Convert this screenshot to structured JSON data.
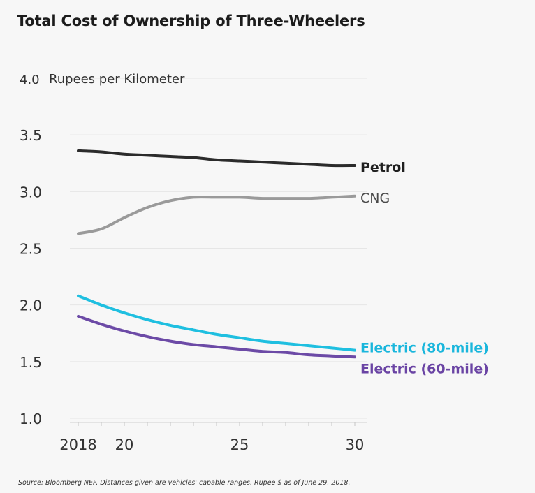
{
  "chart_data": {
    "type": "line",
    "title": "Total Cost of Ownership of Three-Wheelers",
    "ylabel_inline": "Rupees per Kilometer",
    "ylim": [
      1.0,
      4.0
    ],
    "yticks": [
      1.0,
      1.5,
      2.0,
      2.5,
      3.0,
      3.5,
      4.0
    ],
    "ytick_labels": [
      "1.0",
      "1.5",
      "2.0",
      "2.5",
      "3.0",
      "3.5",
      "4.0"
    ],
    "xlim": [
      2018,
      2030
    ],
    "xticks": [
      2018,
      2020,
      2025,
      2030
    ],
    "xtick_labels": [
      "2018",
      "20",
      "25",
      "30"
    ],
    "grid": true,
    "legend": "direct labels at line ends",
    "x": [
      2018,
      2019,
      2020,
      2021,
      2022,
      2023,
      2024,
      2025,
      2026,
      2027,
      2028,
      2029,
      2030
    ],
    "series": [
      {
        "name": "Petrol",
        "color": "#2b2b2b",
        "label_color": "#1f1f1f",
        "label_bold": true,
        "values": [
          3.36,
          3.35,
          3.33,
          3.32,
          3.31,
          3.3,
          3.28,
          3.27,
          3.26,
          3.25,
          3.24,
          3.23,
          3.23
        ]
      },
      {
        "name": "CNG",
        "color": "#9a9a9a",
        "label_color": "#4a4a4a",
        "label_bold": false,
        "values": [
          2.63,
          2.67,
          2.77,
          2.86,
          2.92,
          2.95,
          2.95,
          2.95,
          2.94,
          2.94,
          2.94,
          2.95,
          2.96
        ]
      },
      {
        "name": "Electric (80-mile)",
        "color": "#1fbfe0",
        "label_color": "#19b6dc",
        "label_bold": true,
        "values": [
          2.08,
          2.0,
          1.93,
          1.87,
          1.82,
          1.78,
          1.74,
          1.71,
          1.68,
          1.66,
          1.64,
          1.62,
          1.6
        ]
      },
      {
        "name": "Electric (60-mile)",
        "color": "#6c4aa6",
        "label_color": "#6a44a4",
        "label_bold": true,
        "values": [
          1.9,
          1.83,
          1.77,
          1.72,
          1.68,
          1.65,
          1.63,
          1.61,
          1.59,
          1.58,
          1.56,
          1.55,
          1.54
        ]
      }
    ]
  },
  "footer": {
    "source": "Source: Bloomberg NEF. Distances given are vehicles' capable ranges. Rupee $ as of June 29, 2018."
  }
}
